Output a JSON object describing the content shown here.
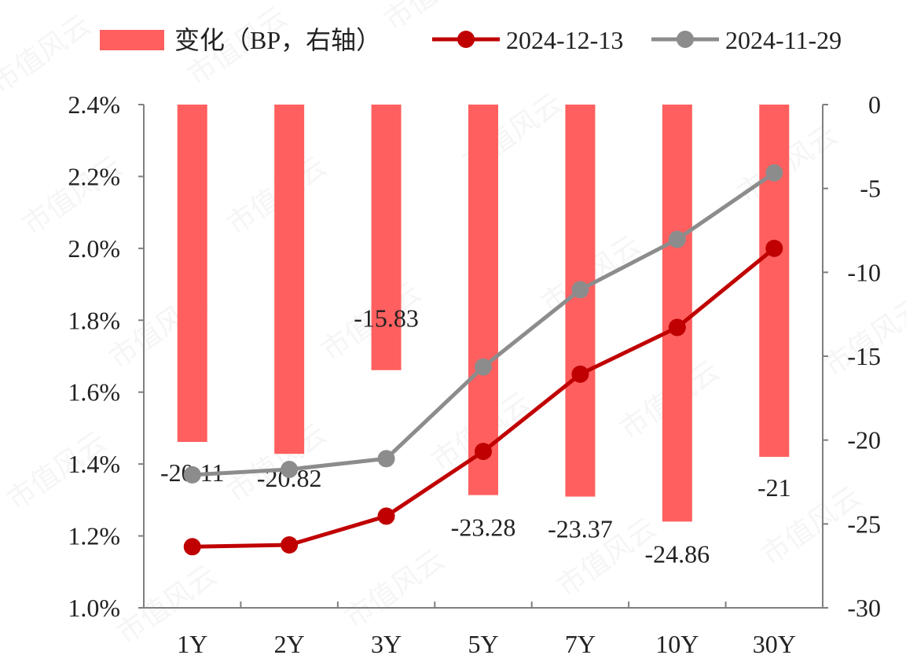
{
  "chart_data": {
    "type": "bar",
    "categories": [
      "1Y",
      "2Y",
      "3Y",
      "5Y",
      "7Y",
      "10Y",
      "30Y"
    ],
    "bar_series": {
      "name": "变化（BP，右轴）",
      "values": [
        -20.11,
        -20.82,
        -15.83,
        -23.28,
        -23.37,
        -24.86,
        -21
      ],
      "labels": [
        "-20.11",
        "-20.82",
        "-15.83",
        "-23.28",
        "-23.37",
        "-24.86",
        "-21"
      ],
      "axis": "right",
      "color": "#ff5f5f"
    },
    "line_series": [
      {
        "name": "2024-12-13",
        "values": [
          1.17,
          1.175,
          1.255,
          1.435,
          1.65,
          1.78,
          2.0
        ],
        "color": "#c00000"
      },
      {
        "name": "2024-11-29",
        "values": [
          1.37,
          1.385,
          1.415,
          1.67,
          1.885,
          2.025,
          2.21
        ],
        "color": "#8c8c8c"
      }
    ],
    "y_left": {
      "ylim": [
        1.0,
        2.4
      ],
      "ticks": [
        "1.0%",
        "1.2%",
        "1.4%",
        "1.6%",
        "1.8%",
        "2.0%",
        "2.2%",
        "2.4%"
      ]
    },
    "y_right": {
      "ylim": [
        -30,
        0
      ],
      "ticks": [
        "-30",
        "-25",
        "-20",
        "-15",
        "-10",
        "-5",
        "0"
      ]
    },
    "legend_position": "top",
    "grid": false
  },
  "watermark": "市值风云"
}
